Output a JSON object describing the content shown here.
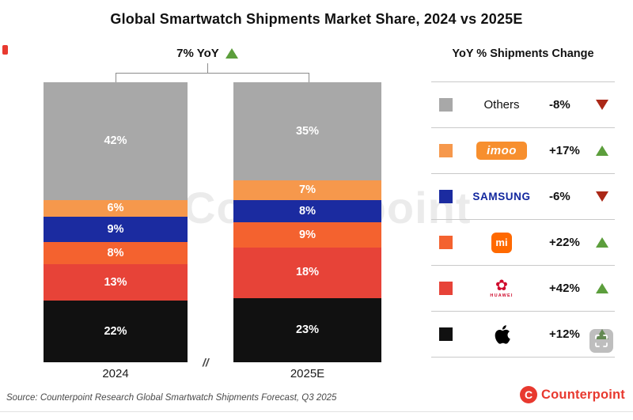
{
  "title": "Global Smartwatch Shipments Market Share, 2024 vs 2025E",
  "yoy": {
    "label": "7% YoY",
    "direction": "up"
  },
  "legend": {
    "title": "YoY % Shipments Change",
    "rows": [
      {
        "name": "Others",
        "display": "Others",
        "change": "-8%",
        "direction": "down",
        "color": "#a8a8a8"
      },
      {
        "name": "imoo",
        "logo_text": "imoo",
        "change": "+17%",
        "direction": "up",
        "color": "#f6984c"
      },
      {
        "name": "Samsung",
        "logo_text": "SAMSUNG",
        "change": "-6%",
        "direction": "down",
        "color": "#1b2ba0"
      },
      {
        "name": "Xiaomi",
        "logo_text": "mi",
        "change": "+22%",
        "direction": "up",
        "color": "#f4622f"
      },
      {
        "name": "Huawei",
        "logo_text": "HUAWEI",
        "change": "+42%",
        "direction": "up",
        "color": "#e74338"
      },
      {
        "name": "Apple",
        "change": "+12%",
        "direction": "up",
        "color": "#111111"
      }
    ]
  },
  "axis": {
    "categories": [
      "2024",
      "2025E"
    ],
    "break_mark": "//"
  },
  "source": "Source: Counterpoint Research Global Smartwatch Shipments Forecast, Q3 2025",
  "brand": {
    "name": "Counterpoint",
    "initial": "C"
  },
  "watermark": "Counterpoint",
  "chart_data": {
    "type": "bar",
    "stacked": true,
    "title": "Global Smartwatch Shipments Market Share, 2024 vs 2025E",
    "categories": [
      "2024",
      "2025E"
    ],
    "value_suffix": "%",
    "total_growth": "7% YoY",
    "ylim": [
      0,
      100
    ],
    "legend_position": "right",
    "series": [
      {
        "name": "Others",
        "color": "#a8a8a8",
        "values": [
          42,
          35
        ],
        "yoy_change": "-8%"
      },
      {
        "name": "imoo",
        "color": "#f6984c",
        "values": [
          6,
          7
        ],
        "yoy_change": "+17%"
      },
      {
        "name": "Samsung",
        "color": "#1b2ba0",
        "values": [
          9,
          8
        ],
        "yoy_change": "-6%"
      },
      {
        "name": "Xiaomi",
        "color": "#f4622f",
        "values": [
          8,
          9
        ],
        "yoy_change": "+22%"
      },
      {
        "name": "Huawei",
        "color": "#e74338",
        "values": [
          13,
          18
        ],
        "yoy_change": "+42%"
      },
      {
        "name": "Apple",
        "color": "#111111",
        "values": [
          22,
          23
        ],
        "yoy_change": "+12%"
      }
    ]
  }
}
